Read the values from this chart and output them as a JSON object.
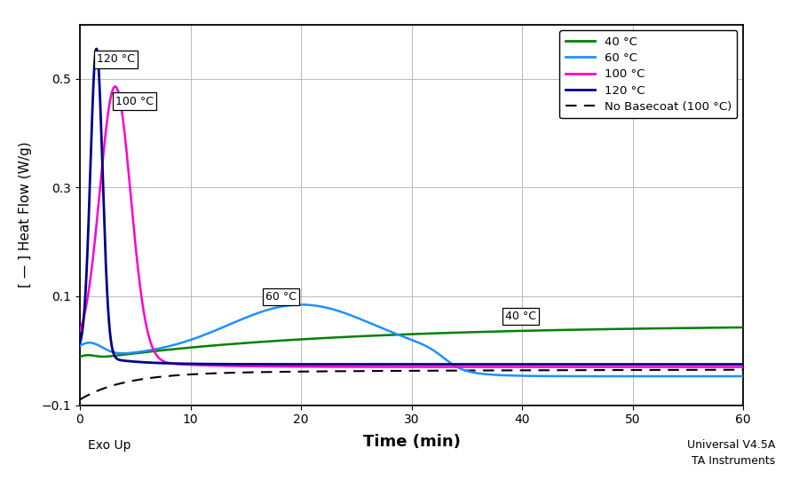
{
  "xlabel": "Time (min)",
  "ylabel": "[ — ] Heat Flow (W/g)",
  "xlim": [
    0,
    60
  ],
  "ylim": [
    -0.1,
    0.6
  ],
  "yticks": [
    -0.1,
    0.1,
    0.3,
    0.5
  ],
  "xticks": [
    0,
    10,
    20,
    30,
    40,
    50,
    60
  ],
  "colors": {
    "40C": "#008000",
    "60C": "#1E90FF",
    "100C": "#FF00CC",
    "120C": "#00008B",
    "no_basecoat": "#000000"
  },
  "legend_labels": [
    "40 °C",
    "60 °C",
    "100 °C",
    "120 °C",
    "No Basecoat (100 °C)"
  ],
  "exo_label": "Exo Up",
  "watermark": "Universal V4.5A\nTA Instruments"
}
